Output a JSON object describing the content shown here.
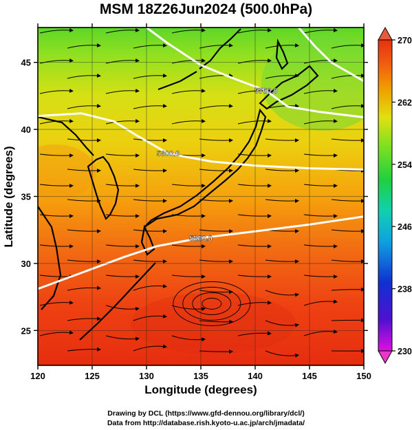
{
  "title": "MSM 18Z26Jun2024 (500.0hPa)",
  "x_axis": {
    "label": "Longitude (degrees)",
    "ticks": [
      "120",
      "125",
      "130",
      "135",
      "140",
      "145",
      "150"
    ],
    "range": [
      120,
      150
    ]
  },
  "y_axis": {
    "label": "Latitude  (degrees)",
    "ticks": [
      "25",
      "30",
      "35",
      "40",
      "45"
    ],
    "range": [
      22.4,
      47.6
    ]
  },
  "colorbar": {
    "ticks": [
      "270",
      "262",
      "254",
      "246",
      "238",
      "230"
    ],
    "range": [
      230,
      270
    ],
    "colors": [
      "#e010e0",
      "#5010d0",
      "#1030d0",
      "#10a0e0",
      "#10d0b0",
      "#20d040",
      "#80e020",
      "#e0e010",
      "#f0a000",
      "#f06010",
      "#e83010"
    ]
  },
  "contours": [
    {
      "label": "5600.0",
      "points": [
        [
          120,
          41
        ],
        [
          124,
          41.2
        ],
        [
          127,
          40.6
        ],
        [
          129,
          39.6
        ],
        [
          132,
          38.2
        ],
        [
          136,
          37.6
        ],
        [
          140,
          37.3
        ],
        [
          145,
          37.1
        ],
        [
          150,
          37.0
        ]
      ]
    },
    {
      "label": "5880.0",
      "points": [
        [
          120,
          28.1
        ],
        [
          124,
          29.3
        ],
        [
          128,
          30.5
        ],
        [
          131,
          31.3
        ],
        [
          135,
          31.9
        ],
        [
          140,
          32.4
        ],
        [
          145,
          32.9
        ],
        [
          150,
          33.5
        ]
      ]
    },
    {
      "label": "5760.0",
      "points": [
        [
          130,
          47.6
        ],
        [
          132,
          46.4
        ],
        [
          135,
          44.8
        ],
        [
          138,
          43.8
        ],
        [
          141,
          42.9
        ],
        [
          143,
          41.7
        ],
        [
          146,
          41.3
        ],
        [
          150,
          40.9
        ]
      ]
    },
    {
      "label": "",
      "points": [
        [
          144,
          47.6
        ],
        [
          145.5,
          46.2
        ],
        [
          147,
          45.0
        ],
        [
          150,
          43.6
        ]
      ]
    }
  ],
  "credits": [
    "Drawing by DCL (https://www.gfd-dennou.org/library/dcl/)",
    "Data from http://database.rish.kyoto-u.ac.jp/arch/jmadata/"
  ]
}
